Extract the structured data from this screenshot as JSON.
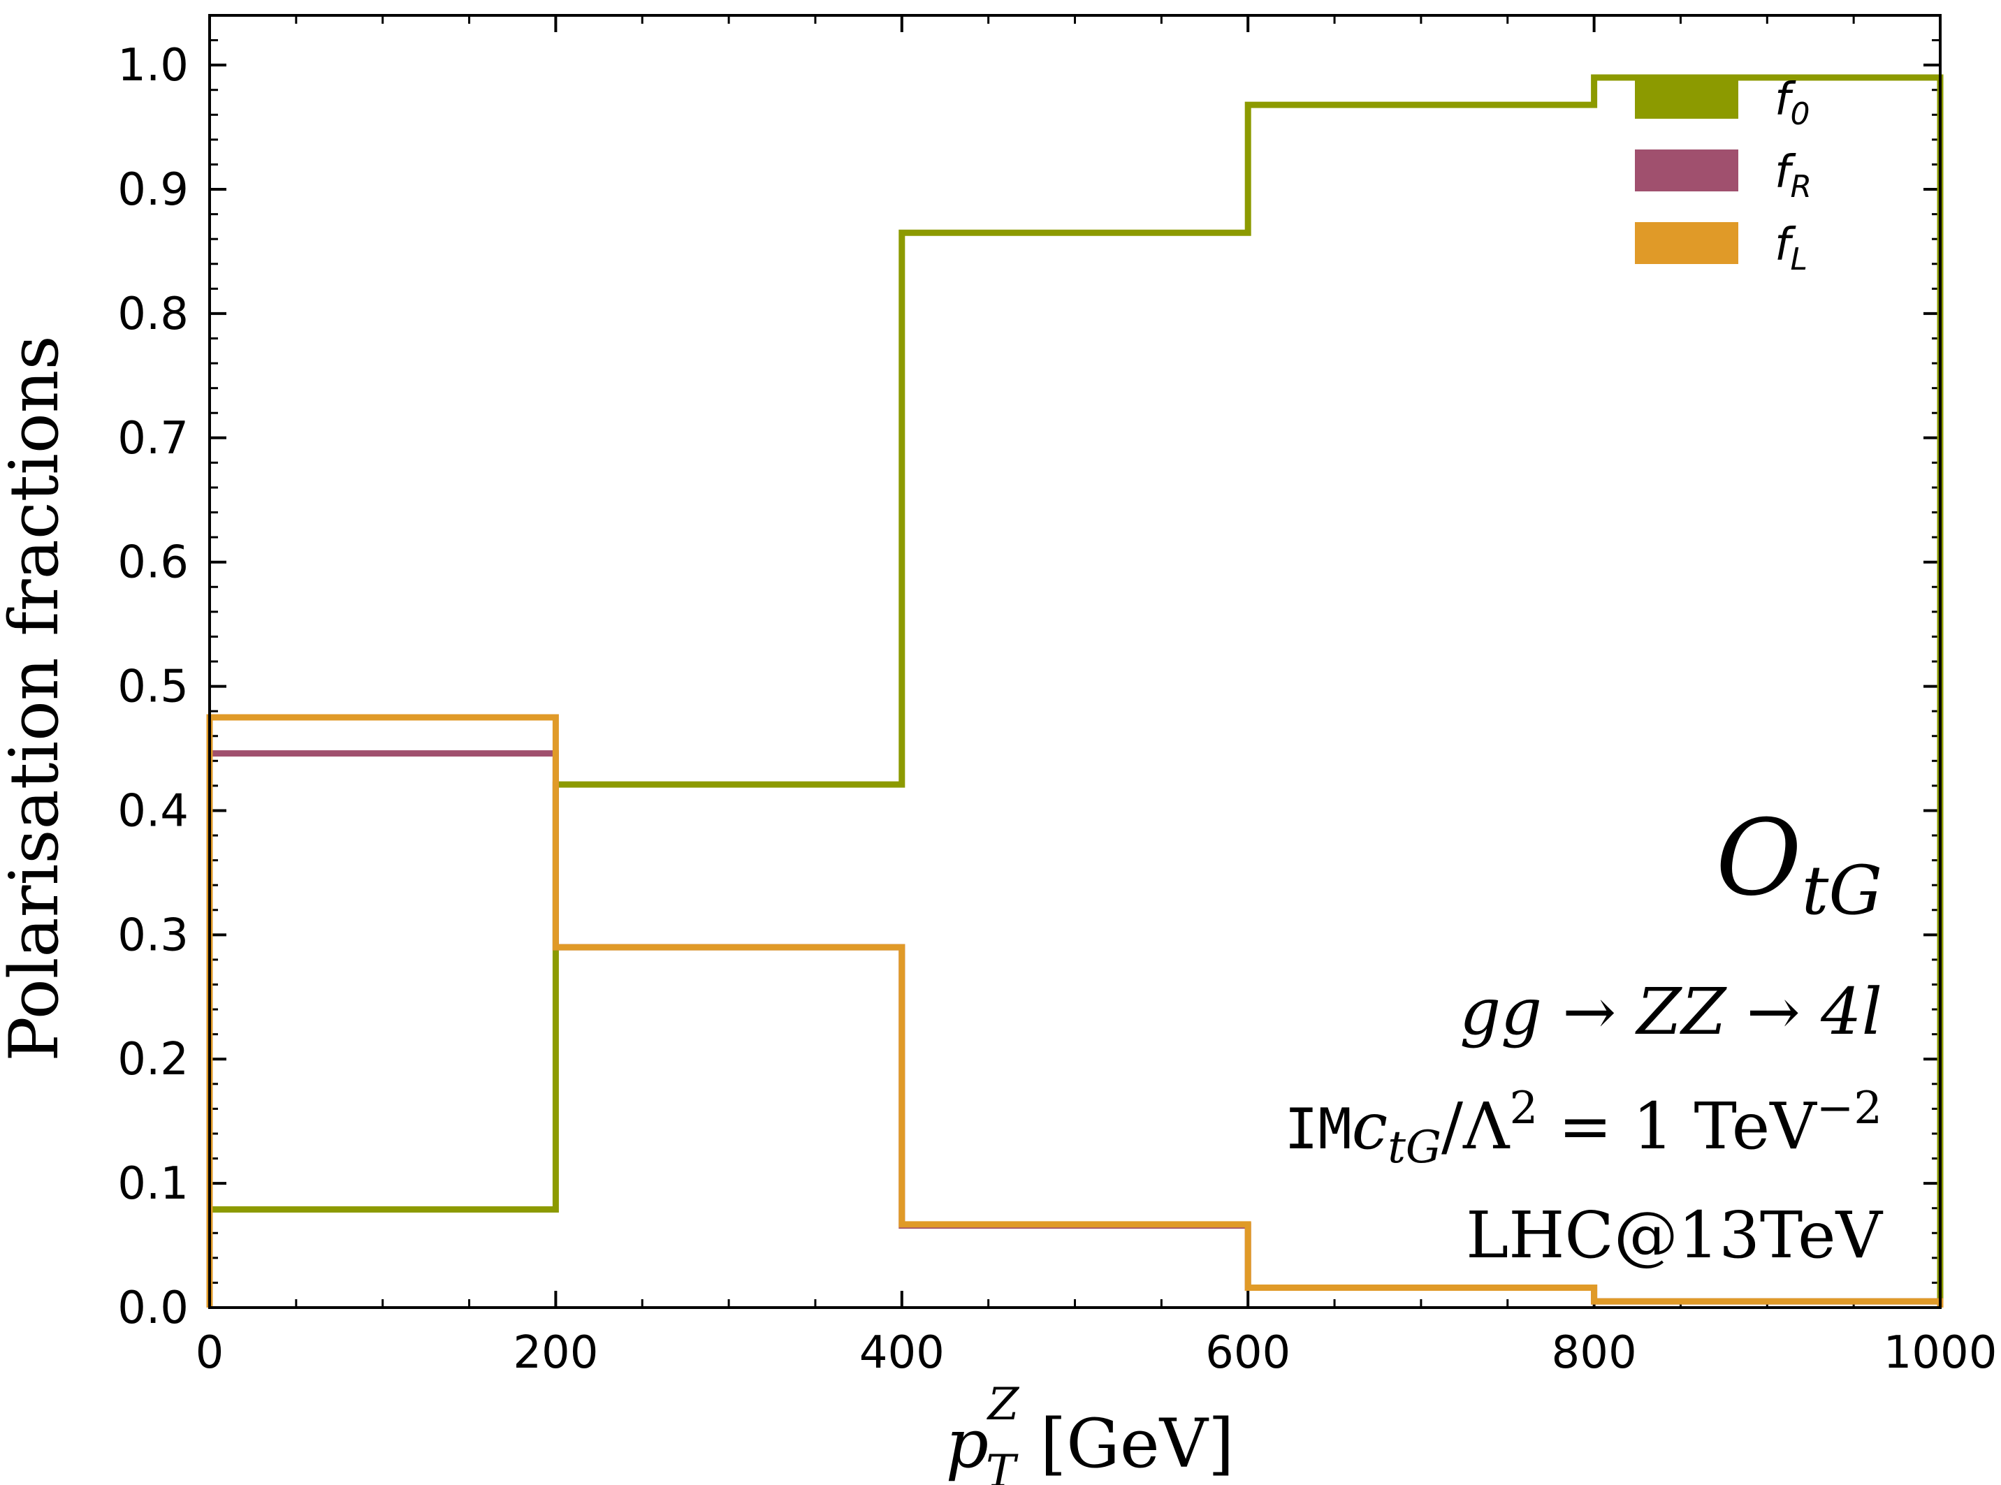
{
  "chart_data": {
    "type": "step",
    "title": "",
    "xlabel": "p_T^Z [GeV]",
    "xlabel_parts": {
      "base": "p",
      "sub": "T",
      "sup": "Z",
      "unit": " [GeV]"
    },
    "ylabel": "Polarisation fractions",
    "xlim": [
      0,
      1000
    ],
    "ylim": [
      0,
      1.04
    ],
    "x_ticks": [
      0,
      200,
      400,
      600,
      800,
      1000
    ],
    "x_tick_labels": [
      "0",
      "200",
      "400",
      "600",
      "800",
      "1000"
    ],
    "y_ticks": [
      0.0,
      0.1,
      0.2,
      0.3,
      0.4,
      0.5,
      0.6,
      0.7,
      0.8,
      0.9,
      1.0
    ],
    "y_tick_labels": [
      "0.0",
      "0.1",
      "0.2",
      "0.3",
      "0.4",
      "0.5",
      "0.6",
      "0.7",
      "0.8",
      "0.9",
      "1.0"
    ],
    "bin_edges": [
      0,
      200,
      400,
      600,
      800,
      1000
    ],
    "series": [
      {
        "name": "f_0",
        "label_base": "f",
        "label_sub": "0",
        "color": "#8c9a00",
        "values": [
          0.079,
          0.421,
          0.865,
          0.968,
          0.99
        ]
      },
      {
        "name": "f_R",
        "label_base": "f",
        "label_sub": "R",
        "color": "#a0506e",
        "values": [
          0.446,
          0.29,
          0.066,
          0.016,
          0.005
        ]
      },
      {
        "name": "f_L",
        "label_base": "f",
        "label_sub": "L",
        "color": "#e09a28",
        "values": [
          0.475,
          0.29,
          0.067,
          0.016,
          0.005
        ]
      }
    ],
    "legend_position": "top-right",
    "annotations": {
      "operator": {
        "base": "O",
        "sub": "tG"
      },
      "process": "gg → ZZ → 4l",
      "coupling": {
        "prefix": "IM",
        "c": "c",
        "c_sub": "tG",
        "rest": "/Λ",
        "rest_sup": "2",
        "eq": " = 1 TeV",
        "eq_sup": "−2"
      },
      "collider": "LHC@13TeV"
    }
  }
}
